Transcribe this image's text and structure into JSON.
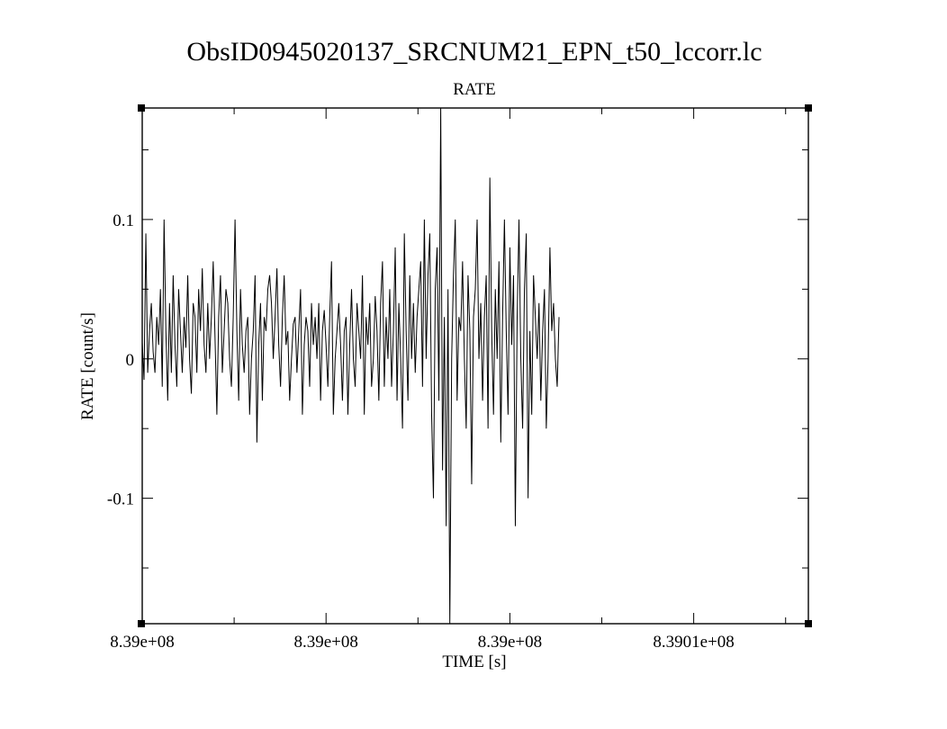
{
  "chart_data": {
    "type": "line",
    "title": "ObsID0945020137_SRCNUM21_EPN_t50_lccorr.lc",
    "subtitle": "RATE",
    "xlabel": "TIME [s]",
    "ylabel": "RATE [count/s]",
    "xlim": [
      838995700,
      839014000
    ],
    "ylim": [
      -0.19,
      0.18
    ],
    "x_tick_values": [
      838995700,
      839000750,
      839005800,
      839010850
    ],
    "x_tick_labels": [
      "8.39e+08",
      "8.39e+08",
      "8.39e+08",
      "8.3901e+08"
    ],
    "y_tick_values": [
      -0.1,
      0,
      0.1
    ],
    "y_tick_labels": [
      "-0.1",
      "0",
      "0.1"
    ],
    "grid": false,
    "line_color": "#000000",
    "series": [
      {
        "x_start": 838995700,
        "x_step": 50,
        "values": [
          0.012,
          -0.015,
          0.09,
          -0.01,
          0.02,
          0.04,
          0.005,
          -0.01,
          0.03,
          0.01,
          0.05,
          -0.02,
          0.1,
          0.02,
          -0.03,
          0.04,
          -0.01,
          0.06,
          0.01,
          -0.02,
          0.05,
          0.02,
          -0.01,
          0.03,
          0.008,
          0.06,
          0.0,
          -0.025,
          0.04,
          0.03,
          -0.01,
          0.05,
          0.02,
          0.065,
          0.01,
          -0.01,
          0.04,
          0.0,
          0.03,
          0.07,
          0.015,
          -0.04,
          0.03,
          0.06,
          -0.01,
          0.02,
          0.05,
          0.04,
          0.0,
          -0.02,
          0.03,
          0.1,
          0.02,
          -0.03,
          0.05,
          0.01,
          -0.01,
          0.02,
          0.03,
          -0.04,
          0.0,
          0.02,
          0.06,
          -0.06,
          0.01,
          0.04,
          -0.03,
          0.03,
          0.02,
          0.05,
          0.06,
          0.04,
          0.0,
          0.03,
          0.065,
          0.01,
          -0.02,
          0.03,
          0.06,
          0.01,
          0.02,
          -0.03,
          0.0,
          0.025,
          0.03,
          -0.01,
          0.02,
          0.05,
          -0.04,
          0.01,
          0.03,
          0.02,
          -0.02,
          0.04,
          0.01,
          0.03,
          0.0,
          0.04,
          -0.03,
          0.02,
          0.035,
          0.01,
          -0.02,
          0.03,
          0.07,
          -0.04,
          0.0,
          0.02,
          0.04,
          0.01,
          -0.03,
          0.02,
          0.03,
          -0.04,
          0.01,
          0.05,
          0.0,
          -0.02,
          0.04,
          0.02,
          0.0,
          0.06,
          -0.04,
          0.03,
          0.01,
          0.04,
          -0.02,
          0.0,
          0.045,
          0.02,
          -0.03,
          0.04,
          0.07,
          -0.02,
          0.03,
          0.0,
          0.05,
          -0.02,
          0.02,
          0.08,
          -0.03,
          0.04,
          0.0,
          -0.05,
          0.09,
          0.02,
          -0.03,
          0.06,
          0.0,
          0.04,
          -0.01,
          0.03,
          0.05,
          0.07,
          -0.02,
          0.1,
          0.0,
          0.06,
          0.09,
          -0.04,
          -0.1,
          0.05,
          0.08,
          -0.03,
          0.18,
          -0.08,
          0.03,
          -0.12,
          0.05,
          -0.19,
          0.0,
          0.06,
          0.1,
          -0.03,
          0.03,
          0.02,
          0.07,
          0.0,
          -0.05,
          0.06,
          0.02,
          -0.09,
          0.03,
          0.05,
          0.1,
          0.0,
          0.04,
          -0.03,
          0.03,
          0.06,
          -0.05,
          0.13,
          0.02,
          -0.04,
          0.05,
          0.0,
          0.07,
          -0.06,
          0.03,
          0.1,
          0.02,
          -0.04,
          0.08,
          0.01,
          0.06,
          -0.12,
          0.03,
          0.1,
          0.0,
          -0.05,
          0.05,
          0.09,
          -0.1,
          0.02,
          -0.04,
          0.06,
          0.03,
          0.0,
          0.04,
          -0.03,
          0.02,
          0.05,
          -0.05,
          0.0,
          0.08,
          0.02,
          0.04,
          0.0,
          -0.02,
          0.03
        ]
      }
    ]
  }
}
